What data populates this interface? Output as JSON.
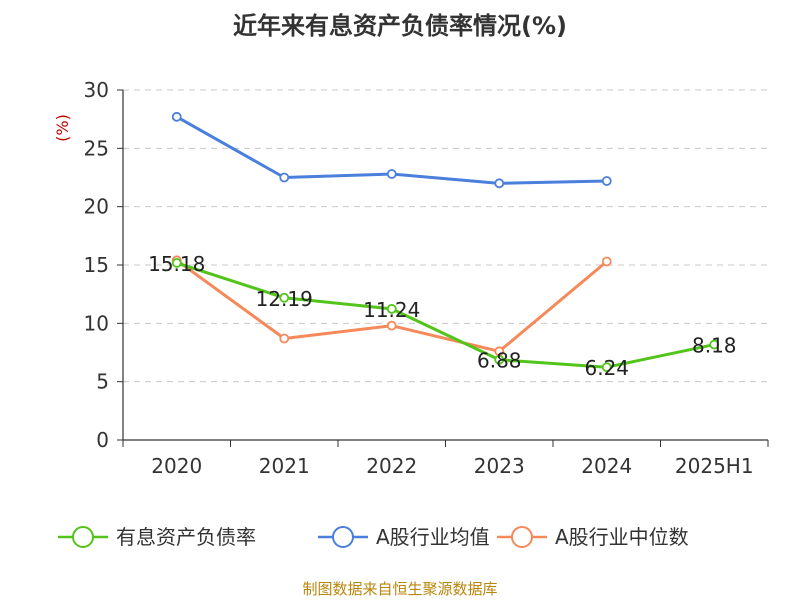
{
  "chart_data": {
    "type": "line",
    "title": "近年来有息资产负债率情况(%)",
    "ylabel": "(%)",
    "xlabel": "",
    "categories": [
      "2020",
      "2021",
      "2022",
      "2023",
      "2024",
      "2025H1"
    ],
    "ylim": [
      0,
      30
    ],
    "yticks": [
      0,
      5,
      10,
      15,
      20,
      25,
      30
    ],
    "grid": true,
    "legend_position": "bottom",
    "series": [
      {
        "name": "有息资产负债率",
        "color": "#52c41a",
        "values": [
          15.18,
          12.19,
          11.24,
          6.88,
          6.24,
          8.18
        ],
        "labels": [
          "15.18",
          "12.19",
          "11.24",
          "6.88",
          "6.24",
          "8.18"
        ]
      },
      {
        "name": "A股行业均值",
        "color": "#4a7fdc",
        "values": [
          27.7,
          22.5,
          22.8,
          22.0,
          22.2,
          null
        ]
      },
      {
        "name": "A股行业中位数",
        "color": "#f5895a",
        "values": [
          15.4,
          8.7,
          9.8,
          7.6,
          15.3,
          null
        ]
      }
    ]
  },
  "source": "制图数据来自恒生聚源数据库"
}
